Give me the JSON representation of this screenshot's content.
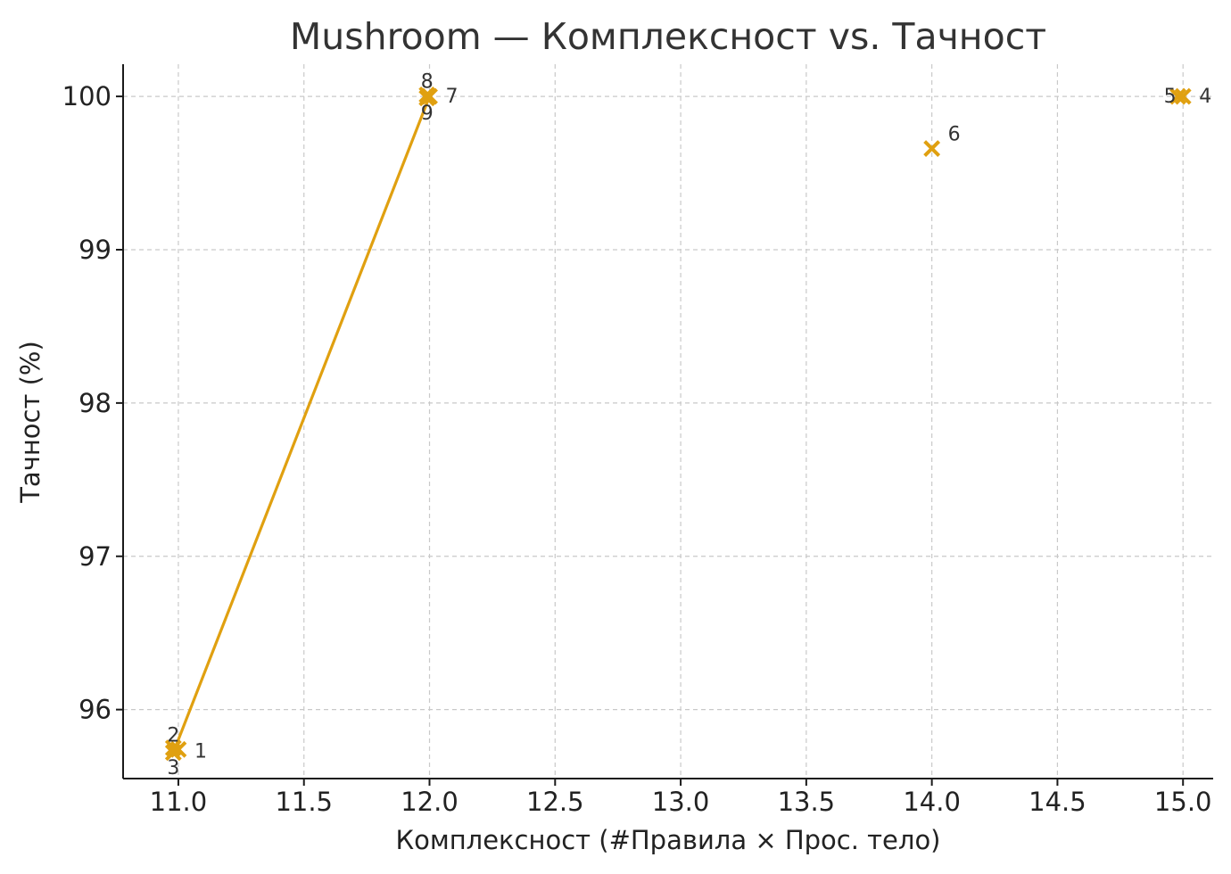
{
  "chart_data": {
    "type": "scatter",
    "title": "Mushroom — Комплексност vs. Тачност",
    "xlabel": "Комплексност (#Правила × Прос. тело)",
    "ylabel": "Тачност (%)",
    "xlim": [
      10.78,
      15.12
    ],
    "ylim": [
      95.55,
      100.21
    ],
    "xticks": [
      "11.0",
      "11.5",
      "12.0",
      "12.5",
      "13.0",
      "13.5",
      "14.0",
      "14.5",
      "15.0"
    ],
    "yticks": [
      "96",
      "97",
      "98",
      "99",
      "100"
    ],
    "grid": true,
    "color": "#e0a010",
    "points": [
      {
        "label": "1",
        "x": 11.0,
        "y": 95.74
      },
      {
        "label": "2",
        "x": 10.98,
        "y": 95.75
      },
      {
        "label": "3",
        "x": 10.98,
        "y": 95.72
      },
      {
        "label": "4",
        "x": 15.0,
        "y": 100.0
      },
      {
        "label": "5",
        "x": 14.98,
        "y": 100.0
      },
      {
        "label": "6",
        "x": 14.0,
        "y": 99.66
      },
      {
        "label": "7",
        "x": 12.0,
        "y": 100.0
      },
      {
        "label": "8",
        "x": 11.99,
        "y": 100.01
      },
      {
        "label": "9",
        "x": 11.99,
        "y": 99.99
      }
    ],
    "line": [
      {
        "x": 10.98,
        "y": 95.72
      },
      {
        "x": 12.0,
        "y": 100.0
      }
    ]
  }
}
